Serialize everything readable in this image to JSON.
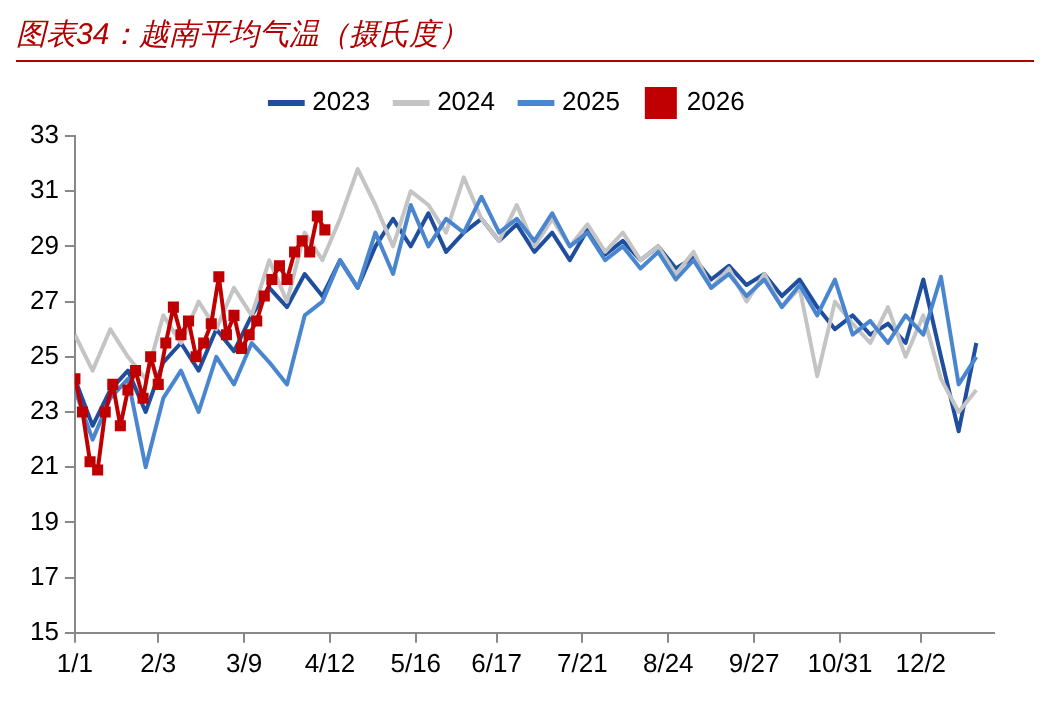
{
  "chart_data": {
    "type": "line",
    "title": "图表34：越南平均气温（摄氏度）",
    "x": [
      "--01-01",
      "--01-08",
      "--01-15",
      "--01-22",
      "--01-29",
      "--02-05",
      "--02-12",
      "--02-19",
      "--02-26",
      "--03-05",
      "--03-12",
      "--03-19",
      "--03-26",
      "--04-02",
      "--04-09",
      "--04-16",
      "--04-23",
      "--04-30",
      "--05-07",
      "--05-14",
      "--05-21",
      "--05-28",
      "--06-04",
      "--06-11",
      "--06-18",
      "--06-25",
      "--07-02",
      "--07-09",
      "--07-16",
      "--07-23",
      "--07-30",
      "--08-06",
      "--08-13",
      "--08-20",
      "--08-27",
      "--09-03",
      "--09-10",
      "--09-17",
      "--09-24",
      "--10-01",
      "--10-08",
      "--10-15",
      "--10-22",
      "--10-29",
      "--11-05",
      "--11-12",
      "--11-19",
      "--11-26",
      "--12-03",
      "--12-10",
      "--12-17",
      "--12-24"
    ],
    "xlim": [
      "--01-01",
      "--12-31"
    ],
    "xticks": [
      {
        "value": "--01-01",
        "label": "1/1"
      },
      {
        "value": "--02-03",
        "label": "2/3"
      },
      {
        "value": "--03-09",
        "label": "3/9"
      },
      {
        "value": "--04-12",
        "label": "4/12"
      },
      {
        "value": "--05-16",
        "label": "5/16"
      },
      {
        "value": "--06-17",
        "label": "6/17"
      },
      {
        "value": "--07-21",
        "label": "7/21"
      },
      {
        "value": "--08-24",
        "label": "8/24"
      },
      {
        "value": "--09-27",
        "label": "9/27"
      },
      {
        "value": "--10-31",
        "label": "10/31"
      },
      {
        "value": "--12-02",
        "label": "12/2"
      }
    ],
    "ylim": [
      15,
      33
    ],
    "yticks": [
      15,
      17,
      19,
      21,
      23,
      25,
      27,
      29,
      31,
      33
    ],
    "grid": false,
    "legend": "top",
    "line_style": "solid",
    "series": [
      {
        "name": "2023",
        "color": "#1f4e9e",
        "marker": "none",
        "values": [
          24.2,
          22.5,
          23.8,
          24.5,
          23.0,
          24.8,
          25.5,
          24.5,
          26.0,
          25.2,
          26.5,
          27.5,
          26.8,
          28.0,
          27.2,
          28.5,
          27.5,
          29.0,
          30.0,
          29.0,
          30.2,
          28.8,
          29.5,
          30.0,
          29.2,
          29.8,
          28.8,
          29.5,
          28.5,
          29.6,
          28.7,
          29.2,
          28.5,
          29.0,
          28.2,
          28.6,
          27.8,
          28.3,
          27.6,
          28.0,
          27.2,
          27.8,
          26.8,
          26.0,
          26.5,
          25.8,
          26.2,
          25.5,
          27.8,
          25.0,
          22.3,
          25.5
        ]
      },
      {
        "name": "2024",
        "color": "#c4c4c4",
        "marker": "none",
        "values": [
          25.8,
          24.5,
          26.0,
          25.0,
          24.2,
          26.5,
          25.5,
          27.0,
          26.0,
          27.5,
          26.5,
          28.5,
          27.0,
          29.5,
          28.5,
          30.0,
          31.8,
          30.5,
          29.0,
          31.0,
          30.5,
          29.5,
          31.5,
          30.0,
          29.2,
          30.5,
          29.0,
          30.0,
          29.0,
          29.8,
          28.8,
          29.5,
          28.5,
          29.0,
          28.0,
          28.8,
          27.5,
          28.2,
          27.0,
          28.0,
          26.8,
          27.5,
          24.3,
          27.0,
          26.2,
          25.5,
          26.8,
          25.0,
          26.5,
          24.2,
          23.0,
          23.8
        ]
      },
      {
        "name": "2025",
        "color": "#4a86d0",
        "marker": "none",
        "values": [
          23.8,
          22.0,
          23.5,
          24.2,
          21.0,
          23.5,
          24.5,
          23.0,
          25.0,
          24.0,
          25.5,
          24.8,
          24.0,
          26.5,
          27.0,
          28.5,
          27.5,
          29.5,
          28.0,
          30.5,
          29.0,
          30.0,
          29.5,
          30.8,
          29.5,
          30.0,
          29.2,
          30.2,
          29.0,
          29.5,
          28.5,
          29.0,
          28.2,
          28.8,
          27.8,
          28.5,
          27.5,
          28.0,
          27.2,
          27.8,
          26.8,
          27.6,
          26.5,
          27.8,
          25.8,
          26.3,
          25.5,
          26.5,
          25.8,
          27.9,
          24.0,
          25.0
        ]
      },
      {
        "name": "2026",
        "color": "#c00000",
        "marker": "square",
        "x": [
          "--01-01",
          "--01-04",
          "--01-07",
          "--01-10",
          "--01-13",
          "--01-16",
          "--01-19",
          "--01-22",
          "--01-25",
          "--01-28",
          "--01-31",
          "--02-03",
          "--02-06",
          "--02-09",
          "--02-12",
          "--02-15",
          "--02-18",
          "--02-21",
          "--02-24",
          "--02-27",
          "--03-02",
          "--03-05",
          "--03-08",
          "--03-11",
          "--03-14",
          "--03-17",
          "--03-20",
          "--03-23",
          "--03-26",
          "--03-29",
          "--04-01",
          "--04-04",
          "--04-07",
          "--04-10"
        ],
        "values": [
          24.2,
          23.0,
          21.2,
          20.9,
          23.0,
          24.0,
          22.5,
          23.8,
          24.5,
          23.5,
          25.0,
          24.0,
          25.5,
          26.8,
          25.8,
          26.3,
          25.0,
          25.5,
          26.2,
          27.9,
          25.8,
          26.5,
          25.3,
          25.8,
          26.3,
          27.2,
          27.8,
          28.3,
          27.8,
          28.8,
          29.2,
          28.8,
          30.1,
          29.6
        ]
      }
    ]
  }
}
